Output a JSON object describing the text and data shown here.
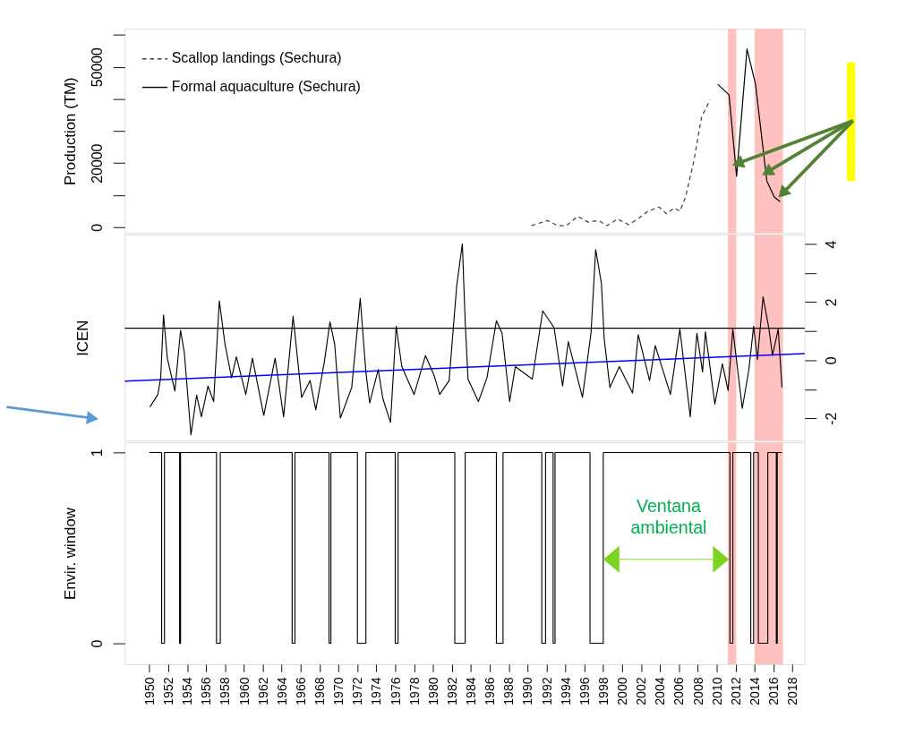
{
  "chart_data": [
    {
      "type": "line",
      "ylabel": "Production (TM)",
      "xlim": [
        1947.4,
        2019.3
      ],
      "ylim": [
        -1800,
        61900
      ],
      "yticks": [
        0,
        {
          "value": 10000,
          "label": null
        },
        20000,
        {
          "value": 30000,
          "label": null
        },
        {
          "value": 40000,
          "label": null
        },
        50000,
        {
          "value": 60000,
          "label": null
        }
      ],
      "tick_labels": "y",
      "grid": false,
      "legend": "top left",
      "marker": "none",
      "bands": [
        {
          "axis": "x",
          "from": 2011.17,
          "to": 2012.06,
          "color": "#ffc0c0"
        },
        {
          "axis": "x",
          "from": 2014.0,
          "to": 2017.0,
          "color": "#ffc0c0"
        }
      ],
      "series": [
        {
          "name": "Scallop landings (Sechura)",
          "color": "#404040",
          "line_style": "dashed",
          "x": [
            1990.4,
            1990.7,
            1992.1,
            1993.2,
            1994.1,
            1995.3,
            1996.4,
            1997.5,
            1998.4,
            1999.5,
            2000.7,
            2001.8,
            2002.7,
            2003.9,
            2004.7,
            2005.5,
            2006.1,
            2006.7,
            2007.6,
            2008.4,
            2009.3
          ],
          "values": [
            500,
            800,
            2100,
            500,
            500,
            3400,
            1600,
            2100,
            500,
            2600,
            800,
            2900,
            5000,
            6300,
            4200,
            6000,
            5000,
            9400,
            21000,
            34500,
            39700
          ]
        },
        {
          "name": "Formal aquaculture (Sechura)",
          "color": "#000000",
          "line_style": "solid",
          "x": [
            2010.1,
            2011.3,
            2012.1,
            2013.2,
            2014.1,
            2015.3,
            2016.1,
            2016.7
          ],
          "values": [
            44600,
            41300,
            15900,
            55600,
            44600,
            14400,
            9400,
            8000
          ]
        }
      ]
    },
    {
      "type": "line",
      "ylabel": "ICEN",
      "xlim": [
        1947.4,
        2019.3
      ],
      "y2lim": [
        -2.77,
        4.32
      ],
      "y2ticks": [
        -2,
        {
          "value": -1,
          "label": null
        },
        0,
        {
          "value": 1,
          "label": null
        },
        2,
        {
          "value": 3,
          "label": null
        },
        4
      ],
      "tick_labels": "y",
      "grid": false,
      "marker": "none",
      "bands": [
        {
          "axis": "x",
          "from": 2011.17,
          "to": 2012.06,
          "color": "#ffc0c0"
        },
        {
          "axis": "x",
          "from": 2014.0,
          "to": 2017.0,
          "color": "#ffc0c0"
        }
      ],
      "ref_lines": [
        {
          "axis": "y2",
          "value": 1.1,
          "color": "#000000"
        }
      ],
      "series": [
        {
          "color": "#000000",
          "axis": "y2",
          "line_style": "solid",
          "x": [
            1950.06,
            1950.9,
            1951.2,
            1951.5,
            1951.9,
            1952.7,
            1953.3,
            1953.7,
            1954.4,
            1955.0,
            1955.5,
            1956.2,
            1956.8,
            1957.4,
            1958.0,
            1958.7,
            1959.2,
            1960.2,
            1960.9,
            1962.1,
            1963.3,
            1964.2,
            1965.2,
            1966.1,
            1967.0,
            1967.6,
            1968.5,
            1969.1,
            1969.6,
            1970.2,
            1971.4,
            1972.3,
            1972.9,
            1973.3,
            1974.2,
            1974.7,
            1975.5,
            1976.1,
            1976.7,
            1978.0,
            1979.2,
            1980.1,
            1980.7,
            1981.7,
            1982.5,
            1983.1,
            1983.4,
            1983.7,
            1984.8,
            1985.7,
            1986.7,
            1987.3,
            1988.1,
            1988.7,
            1990.5,
            1991.6,
            1992.8,
            1993.7,
            1994.3,
            1995.8,
            1996.7,
            1997.2,
            1997.8,
            1998.1,
            1998.7,
            1999.7,
            2001.1,
            2001.7,
            2002.9,
            2003.5,
            2005.1,
            2006.1,
            2007.2,
            2007.9,
            2008.5,
            2008.8,
            2009.8,
            2010.6,
            2011.2,
            2011.7,
            2012.7,
            2013.4,
            2013.9,
            2014.3,
            2014.9,
            2015.5,
            2015.9,
            2016.5,
            2016.9
          ],
          "values": [
            -1.61,
            -1.18,
            -0.61,
            1.56,
            0.07,
            -1.06,
            1.03,
            0.26,
            -2.57,
            -1.2,
            -1.95,
            -0.89,
            -1.42,
            2.04,
            0.55,
            -0.61,
            0.12,
            -1.18,
            0.07,
            -1.9,
            0.07,
            -1.95,
            1.51,
            -1.28,
            -0.7,
            -1.71,
            -0.07,
            1.32,
            0.55,
            -1.99,
            -0.94,
            2.13,
            -0.41,
            -1.47,
            -0.32,
            -1.33,
            -2.14,
            1.17,
            -0.22,
            -1.18,
            0.16,
            -0.51,
            -1.18,
            -0.7,
            2.56,
            4.01,
            1.32,
            -0.65,
            -1.42,
            -0.61,
            1.36,
            0.93,
            -1.42,
            -0.22,
            -0.65,
            1.7,
            1.12,
            -0.89,
            0.64,
            -1.28,
            0.93,
            3.81,
            2.66,
            0.74,
            -0.94,
            -0.22,
            -1.13,
            0.88,
            -0.7,
            0.5,
            -1.18,
            1.07,
            -1.95,
            0.93,
            -0.41,
            0.98,
            -1.51,
            -0.12,
            -1.04,
            1.07,
            -1.66,
            -0.32,
            1.17,
            0.02,
            2.18,
            1.12,
            0.16,
            1.07,
            -0.94
          ]
        },
        {
          "color": "#0000ff",
          "axis": "y2",
          "type": "line",
          "line_style": "solid",
          "x": [
            1947.4,
            2019.3
          ],
          "values": [
            -0.72,
            0.23
          ]
        }
      ]
    },
    {
      "type": "line",
      "ylabel": "Envir. window",
      "xlim": [
        1947.4,
        2019.3
      ],
      "ylim": [
        -0.11,
        1.053
      ],
      "yticks": [
        0,
        1
      ],
      "xticks": [
        1950,
        1952,
        1954,
        1956,
        1958,
        1960,
        1962,
        1964,
        1966,
        1968,
        1970,
        1972,
        1974,
        1976,
        1978,
        1980,
        1982,
        1984,
        1986,
        1988,
        1990,
        1992,
        1994,
        1996,
        1998,
        2000,
        2002,
        2004,
        2006,
        2008,
        2010,
        2012,
        2014,
        2016,
        2018
      ],
      "grid": false,
      "marker": "none",
      "bands": [
        {
          "axis": "x",
          "from": 2011.17,
          "to": 2012.06,
          "color": "#ffc0c0"
        },
        {
          "axis": "x",
          "from": 2014.0,
          "to": 2017.0,
          "color": "#ffc0c0"
        }
      ],
      "annotations": [
        "Ventana ambiental"
      ],
      "series": [
        {
          "color": "#000000",
          "line_style": "solid",
          "x": [
            1950.0,
            1951.3,
            1951.3,
            1951.6,
            1951.6,
            1953.2,
            1953.2,
            1953.3,
            1953.3,
            1957.1,
            1957.1,
            1957.5,
            1957.5,
            1965.1,
            1965.1,
            1965.4,
            1965.4,
            1969.0,
            1969.0,
            1969.2,
            1969.2,
            1972.0,
            1972.0,
            1972.9,
            1972.9,
            1976.0,
            1976.0,
            1976.3,
            1976.3,
            1982.3,
            1982.3,
            1983.4,
            1983.4,
            1986.7,
            1986.7,
            1987.4,
            1987.4,
            1991.5,
            1991.5,
            1991.9,
            1991.9,
            1992.7,
            1992.7,
            1992.9,
            1992.9,
            1996.6,
            1996.6,
            1998.0,
            1998.0,
            2011.4,
            2011.4,
            2011.7,
            2011.7,
            2013.6,
            2013.6,
            2013.9,
            2013.9,
            2014.4,
            2014.4,
            2015.4,
            2015.4,
            2016.3,
            2016.3,
            2016.4,
            2016.4,
            2016.9
          ],
          "values": [
            1,
            1,
            0,
            0,
            1,
            1,
            0,
            0,
            1,
            1,
            0,
            0,
            1,
            1,
            0,
            0,
            1,
            1,
            0,
            0,
            1,
            1,
            0,
            0,
            1,
            1,
            0,
            0,
            1,
            1,
            0,
            0,
            1,
            1,
            0,
            0,
            1,
            1,
            0,
            0,
            1,
            1,
            0,
            0,
            1,
            1,
            0,
            0,
            1,
            1,
            0,
            0,
            1,
            1,
            0,
            0,
            1,
            1,
            0,
            0,
            1,
            1,
            0,
            0,
            1,
            1
          ]
        }
      ]
    }
  ]
}
